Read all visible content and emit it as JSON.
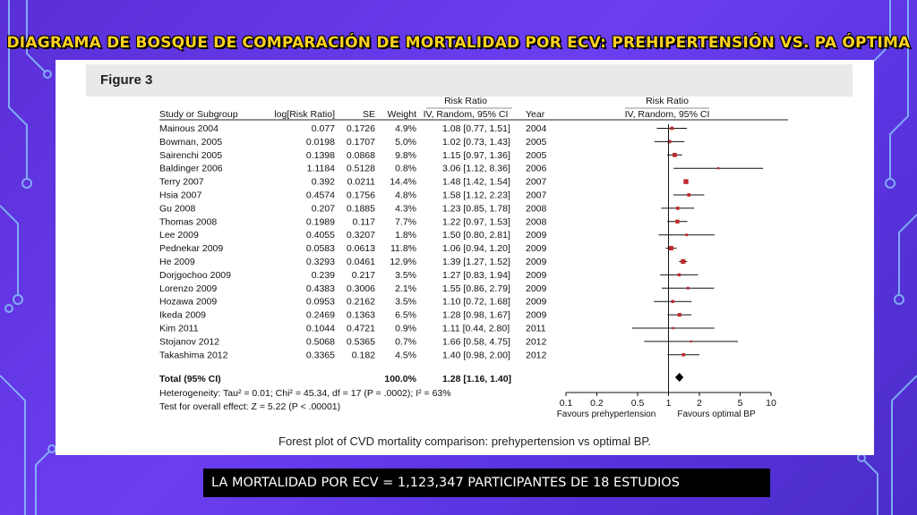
{
  "slide": {
    "title": "DIAGRAMA DE BOSQUE DE COMPARACIÓN DE MORTALIDAD POR ECV: PREHIPERTENSIÓN VS. PA ÓPTIMA",
    "footer": "LA MORTALIDAD POR ECV = 1,123,347 PARTICIPANTES DE 18 ESTUDIOS",
    "accent_color": "#ffd21f",
    "background_color": "#5a34e0"
  },
  "figure": {
    "label": "Figure 3",
    "caption": "Forest plot of CVD mortality comparison: prehypertension vs optimal BP.",
    "headers": {
      "rr_top": "Risk Ratio",
      "rr_top_plot": "Risk Ratio",
      "study": "Study or Subgroup",
      "logrr": "log[Risk Ratio]",
      "se": "SE",
      "weight": "Weight",
      "ci": "IV, Random, 95% CI",
      "year": "Year",
      "ci_plot": "IV, Random, 95% CI"
    },
    "total": {
      "label": "Total (95% CI)",
      "weight": "100.0%",
      "ci": "1.28 [1.16, 1.40]"
    },
    "heterogeneity": "Heterogeneity: Tau² = 0.01; Chi² = 45.34, df = 17 (P = .0002); I² = 63%",
    "overall_effect": "Test for overall effect: Z = 5.22 (P < .00001)",
    "axis": {
      "ticks": [
        "0.1",
        "0.2",
        "0.5",
        "1",
        "2",
        "5",
        "10"
      ],
      "left_label": "Favours prehypertension",
      "right_label": "Favours optimal BP"
    }
  },
  "chart_data": {
    "type": "forest",
    "xscale": "log",
    "xlim": [
      0.1,
      10
    ],
    "studies": [
      {
        "name": "Mainous 2004",
        "logrr": "0.077",
        "se": "0.1726",
        "weight": "4.9%",
        "ci": "1.08 [0.77, 1.51]",
        "year": "2004",
        "rr": 1.08,
        "lo": 0.77,
        "hi": 1.51,
        "w": 4.9
      },
      {
        "name": "Bowman, 2005",
        "logrr": "0.0198",
        "se": "0.1707",
        "weight": "5.0%",
        "ci": "1.02 [0.73, 1.43]",
        "year": "2005",
        "rr": 1.02,
        "lo": 0.73,
        "hi": 1.43,
        "w": 5.0
      },
      {
        "name": "Sairenchi 2005",
        "logrr": "0.1398",
        "se": "0.0868",
        "weight": "9.8%",
        "ci": "1.15 [0.97, 1.36]",
        "year": "2005",
        "rr": 1.15,
        "lo": 0.97,
        "hi": 1.36,
        "w": 9.8
      },
      {
        "name": "Baldinger 2006",
        "logrr": "1.1184",
        "se": "0.5128",
        "weight": "0.8%",
        "ci": "3.06 [1.12, 8.36]",
        "year": "2006",
        "rr": 3.06,
        "lo": 1.12,
        "hi": 8.36,
        "w": 0.8
      },
      {
        "name": "Terry 2007",
        "logrr": "0.392",
        "se": "0.0211",
        "weight": "14.4%",
        "ci": "1.48 [1.42, 1.54]",
        "year": "2007",
        "rr": 1.48,
        "lo": 1.42,
        "hi": 1.54,
        "w": 14.4
      },
      {
        "name": "Hsia 2007",
        "logrr": "0.4574",
        "se": "0.1756",
        "weight": "4.8%",
        "ci": "1.58 [1.12, 2.23]",
        "year": "2007",
        "rr": 1.58,
        "lo": 1.12,
        "hi": 2.23,
        "w": 4.8
      },
      {
        "name": "Gu 2008",
        "logrr": "0.207",
        "se": "0.1885",
        "weight": "4.3%",
        "ci": "1.23 [0.85, 1.78]",
        "year": "2008",
        "rr": 1.23,
        "lo": 0.85,
        "hi": 1.78,
        "w": 4.3
      },
      {
        "name": "Thomas 2008",
        "logrr": "0.1989",
        "se": "0.117",
        "weight": "7.7%",
        "ci": "1.22 [0.97, 1.53]",
        "year": "2008",
        "rr": 1.22,
        "lo": 0.97,
        "hi": 1.53,
        "w": 7.7
      },
      {
        "name": "Lee 2009",
        "logrr": "0.4055",
        "se": "0.3207",
        "weight": "1.8%",
        "ci": "1.50 [0.80, 2.81]",
        "year": "2009",
        "rr": 1.5,
        "lo": 0.8,
        "hi": 2.81,
        "w": 1.8
      },
      {
        "name": "Pednekar 2009",
        "logrr": "0.0583",
        "se": "0.0613",
        "weight": "11.8%",
        "ci": "1.06 [0.94, 1.20]",
        "year": "2009",
        "rr": 1.06,
        "lo": 0.94,
        "hi": 1.2,
        "w": 11.8
      },
      {
        "name": "He 2009",
        "logrr": "0.3293",
        "se": "0.0461",
        "weight": "12.9%",
        "ci": "1.39 [1.27, 1.52]",
        "year": "2009",
        "rr": 1.39,
        "lo": 1.27,
        "hi": 1.52,
        "w": 12.9
      },
      {
        "name": "Dorjgochoo 2009",
        "logrr": "0.239",
        "se": "0.217",
        "weight": "3.5%",
        "ci": "1.27 [0.83, 1.94]",
        "year": "2009",
        "rr": 1.27,
        "lo": 0.83,
        "hi": 1.94,
        "w": 3.5
      },
      {
        "name": "Lorenzo 2009",
        "logrr": "0.4383",
        "se": "0.3006",
        "weight": "2.1%",
        "ci": "1.55 [0.86, 2.79]",
        "year": "2009",
        "rr": 1.55,
        "lo": 0.86,
        "hi": 2.79,
        "w": 2.1
      },
      {
        "name": "Hozawa 2009",
        "logrr": "0.0953",
        "se": "0.2162",
        "weight": "3.5%",
        "ci": "1.10 [0.72, 1.68]",
        "year": "2009",
        "rr": 1.1,
        "lo": 0.72,
        "hi": 1.68,
        "w": 3.5
      },
      {
        "name": "Ikeda 2009",
        "logrr": "0.2469",
        "se": "0.1363",
        "weight": "6.5%",
        "ci": "1.28 [0.98, 1.67]",
        "year": "2009",
        "rr": 1.28,
        "lo": 0.98,
        "hi": 1.67,
        "w": 6.5
      },
      {
        "name": "Kim 2011",
        "logrr": "0.1044",
        "se": "0.4721",
        "weight": "0.9%",
        "ci": "1.11 [0.44, 2.80]",
        "year": "2011",
        "rr": 1.11,
        "lo": 0.44,
        "hi": 2.8,
        "w": 0.9
      },
      {
        "name": "Stojanov 2012",
        "logrr": "0.5068",
        "se": "0.5365",
        "weight": "0.7%",
        "ci": "1.66 [0.58, 4.75]",
        "year": "2012",
        "rr": 1.66,
        "lo": 0.58,
        "hi": 4.75,
        "w": 0.7
      },
      {
        "name": "Takashima 2012",
        "logrr": "0.3365",
        "se": "0.182",
        "weight": "4.5%",
        "ci": "1.40 [0.98, 2.00]",
        "year": "2012",
        "rr": 1.4,
        "lo": 0.98,
        "hi": 2.0,
        "w": 4.5
      }
    ],
    "pooled": {
      "rr": 1.28,
      "lo": 1.16,
      "hi": 1.4
    }
  }
}
